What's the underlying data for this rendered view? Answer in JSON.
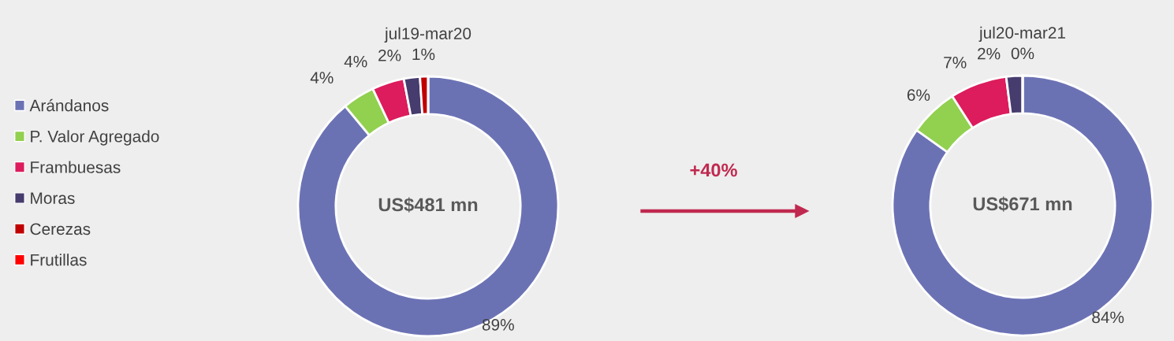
{
  "chart_data": [
    {
      "type": "donut",
      "title": "jul19-mar20",
      "categories": [
        "Arándanos",
        "P. Valor Agregado",
        "Frambuesas",
        "Moras",
        "Cerezas",
        "Frutillas"
      ],
      "values": [
        89,
        4,
        4,
        2,
        1,
        0
      ],
      "value_labels": [
        "89%",
        "4%",
        "4%",
        "2%",
        "1%",
        null
      ],
      "colors": [
        "#6b72b4",
        "#92d050",
        "#dc1c5c",
        "#463c6e",
        "#c00000",
        "#ff0000"
      ],
      "legend": "left",
      "annotations": [
        "US$481 mn"
      ]
    },
    {
      "type": "donut",
      "title": "jul20-mar21",
      "categories": [
        null,
        null,
        null,
        null,
        null,
        null
      ],
      "values": [
        84,
        6,
        7,
        2,
        0,
        0
      ],
      "value_labels": [
        "84%",
        "6%",
        "7%",
        "2%",
        "0%",
        null
      ],
      "colors": [
        "#6b72b4",
        "#92d050",
        "#dc1c5c",
        "#463c6e",
        "#c00000",
        "#ff0000"
      ],
      "annotations": [
        "US$671 mn",
        "+40%"
      ]
    }
  ]
}
